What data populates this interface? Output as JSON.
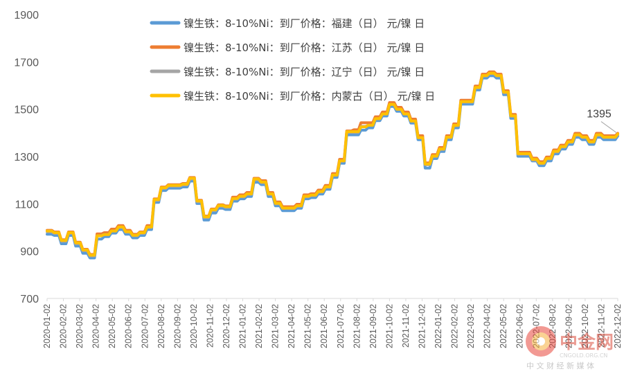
{
  "chart_data": {
    "type": "line",
    "title": "",
    "xlabel": "",
    "ylabel": "",
    "ylim": [
      700,
      1900
    ],
    "yticks": [
      700,
      900,
      1100,
      1300,
      1500,
      1700,
      1900
    ],
    "xticks": [
      "2020-01-02",
      "2020-02-02",
      "2020-03-02",
      "2020-04-02",
      "2020-05-02",
      "2020-06-02",
      "2020-07-02",
      "2020-08-02",
      "2020-09-02",
      "2020-10-02",
      "2020-11-02",
      "2020-12-02",
      "2021-01-02",
      "2021-02-02",
      "2021-03-02",
      "2021-04-02",
      "2021-05-02",
      "2021-06-02",
      "2021-07-02",
      "2021-08-02",
      "2021-09-02",
      "2021-10-02",
      "2021-11-02",
      "2021-12-02",
      "2022-01-02",
      "2022-02-02",
      "2022-03-02",
      "2022-04-02",
      "2022-05-02",
      "2022-06-02",
      "2022-07-02",
      "2022-08-02",
      "2022-09-02",
      "2022-10-02",
      "2022-11-02",
      "2022-12-02"
    ],
    "grid": false,
    "legend_position": "top",
    "annotation": {
      "text": "1395",
      "series": 3
    },
    "series": [
      {
        "name": "镍生铁：8-10%Ni：到厂价格：福建（日） 元/镍 日",
        "color": "#5B9BD5",
        "values": [
          980,
          975,
          940,
          975,
          930,
          900,
          880,
          960,
          970,
          985,
          1000,
          980,
          965,
          975,
          1000,
          1115,
          1165,
          1175,
          1175,
          1180,
          1205,
          1110,
          1040,
          1070,
          1090,
          1085,
          1120,
          1130,
          1140,
          1200,
          1190,
          1140,
          1100,
          1080,
          1080,
          1090,
          1130,
          1135,
          1150,
          1170,
          1220,
          1280,
          1400,
          1400,
          1420,
          1430,
          1460,
          1480,
          1520,
          1500,
          1480,
          1450,
          1380,
          1260,
          1300,
          1330,
          1380,
          1430,
          1530,
          1530,
          1590,
          1640,
          1650,
          1640,
          1570,
          1470,
          1310,
          1310,
          1290,
          1270,
          1290,
          1320,
          1340,
          1360,
          1390,
          1380,
          1360,
          1390,
          1380,
          1380,
          1395
        ]
      },
      {
        "name": "镍生铁：8-10%Ni：到厂价格：江苏（日） 元/镍 日",
        "color": "#ED7D31",
        "values": [
          985,
          978,
          945,
          978,
          935,
          905,
          883,
          970,
          975,
          990,
          1005,
          985,
          968,
          978,
          1005,
          1118,
          1168,
          1178,
          1178,
          1183,
          1208,
          1112,
          1045,
          1075,
          1093,
          1088,
          1125,
          1135,
          1145,
          1205,
          1195,
          1145,
          1105,
          1085,
          1085,
          1095,
          1135,
          1140,
          1155,
          1175,
          1225,
          1285,
          1405,
          1410,
          1440,
          1440,
          1465,
          1485,
          1525,
          1505,
          1485,
          1455,
          1385,
          1270,
          1305,
          1335,
          1385,
          1435,
          1535,
          1535,
          1595,
          1645,
          1655,
          1645,
          1575,
          1475,
          1315,
          1315,
          1290,
          1275,
          1295,
          1325,
          1345,
          1365,
          1395,
          1385,
          1365,
          1395,
          1385,
          1385,
          1395
        ]
      },
      {
        "name": "镍生铁：8-10%Ni：到厂价格：辽宁（日） 元/镍 日",
        "color": "#A5A5A5",
        "values": [
          985,
          978,
          945,
          978,
          935,
          905,
          883,
          968,
          973,
          988,
          1003,
          983,
          968,
          978,
          1003,
          1118,
          1168,
          1178,
          1178,
          1183,
          1208,
          1112,
          1045,
          1075,
          1093,
          1088,
          1123,
          1133,
          1143,
          1205,
          1193,
          1143,
          1103,
          1083,
          1083,
          1093,
          1133,
          1138,
          1153,
          1173,
          1223,
          1283,
          1405,
          1405,
          1430,
          1435,
          1462,
          1482,
          1522,
          1502,
          1482,
          1452,
          1382,
          1268,
          1303,
          1333,
          1383,
          1433,
          1533,
          1533,
          1593,
          1643,
          1653,
          1643,
          1573,
          1473,
          1313,
          1313,
          1288,
          1273,
          1293,
          1323,
          1343,
          1363,
          1393,
          1383,
          1363,
          1393,
          1383,
          1383,
          1395
        ]
      },
      {
        "name": "镍生铁：8-10%Ni：到厂价格：内蒙古（日） 元/镍 日",
        "color": "#FFC000",
        "values": [
          985,
          978,
          945,
          978,
          935,
          905,
          883,
          965,
          970,
          985,
          1002,
          982,
          967,
          978,
          1002,
          1118,
          1168,
          1178,
          1178,
          1183,
          1208,
          1112,
          1045,
          1075,
          1093,
          1088,
          1122,
          1132,
          1142,
          1205,
          1192,
          1142,
          1102,
          1082,
          1082,
          1092,
          1132,
          1137,
          1152,
          1172,
          1222,
          1282,
          1405,
          1405,
          1425,
          1432,
          1460,
          1480,
          1520,
          1500,
          1480,
          1450,
          1380,
          1268,
          1302,
          1332,
          1382,
          1432,
          1532,
          1532,
          1592,
          1642,
          1652,
          1642,
          1572,
          1472,
          1312,
          1312,
          1288,
          1272,
          1292,
          1322,
          1342,
          1362,
          1392,
          1382,
          1362,
          1392,
          1382,
          1382,
          1395
        ]
      }
    ]
  },
  "watermark": {
    "text": "中金网",
    "sub": "中 文 财 经 新 媒 体",
    "url": "CNGOLD.ORG.CN"
  }
}
